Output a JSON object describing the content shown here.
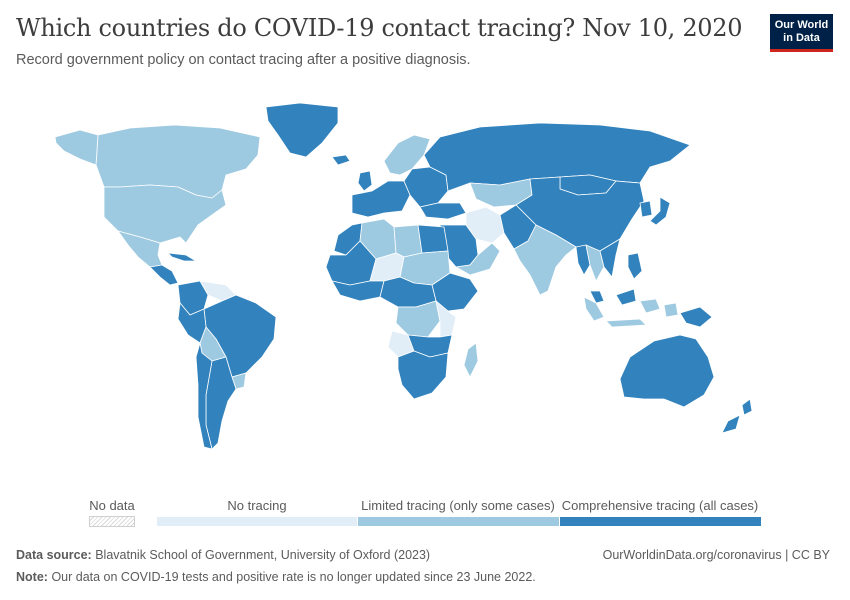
{
  "header": {
    "title": "Which countries do COVID-19 contact tracing? Nov 10, 2020",
    "subtitle": "Record government policy on contact tracing after a positive diagnosis."
  },
  "logo": {
    "line1": "Our World",
    "line2": "in Data"
  },
  "colors": {
    "no_data": "#ffffff",
    "no_tracing": "#e1edf7",
    "limited": "#9ecae1",
    "comprehensive": "#3182bd",
    "background": "#ffffff"
  },
  "legend": {
    "no_data_label": "No data",
    "bins": [
      {
        "label": "No tracing",
        "color": "#e1edf7"
      },
      {
        "label": "Limited tracing (only some cases)",
        "color": "#9ecae1"
      },
      {
        "label": "Comprehensive tracing (all cases)",
        "color": "#3182bd"
      }
    ]
  },
  "map": {
    "projection": "robinson",
    "regions": [
      {
        "name": "Canada",
        "category": "limited"
      },
      {
        "name": "Alaska",
        "category": "limited"
      },
      {
        "name": "United States",
        "category": "limited"
      },
      {
        "name": "Greenland",
        "category": "comprehensive"
      },
      {
        "name": "Mexico",
        "category": "limited"
      },
      {
        "name": "Central America",
        "category": "comprehensive"
      },
      {
        "name": "Cuba",
        "category": "comprehensive"
      },
      {
        "name": "Venezuela",
        "category": "no_tracing"
      },
      {
        "name": "Brazil",
        "category": "comprehensive"
      },
      {
        "name": "Colombia",
        "category": "comprehensive"
      },
      {
        "name": "Bolivia",
        "category": "limited"
      },
      {
        "name": "Peru",
        "category": "comprehensive"
      },
      {
        "name": "Argentina",
        "category": "comprehensive"
      },
      {
        "name": "Chile",
        "category": "comprehensive"
      },
      {
        "name": "Uruguay",
        "category": "limited"
      },
      {
        "name": "Iceland",
        "category": "comprehensive"
      },
      {
        "name": "United Kingdom",
        "category": "comprehensive"
      },
      {
        "name": "Scandinavia",
        "category": "limited"
      },
      {
        "name": "Western Europe",
        "category": "comprehensive"
      },
      {
        "name": "Eastern Europe",
        "category": "comprehensive"
      },
      {
        "name": "Russia",
        "category": "comprehensive"
      },
      {
        "name": "Kazakhstan",
        "category": "limited"
      },
      {
        "name": "Mongolia",
        "category": "comprehensive"
      },
      {
        "name": "China",
        "category": "comprehensive"
      },
      {
        "name": "Japan",
        "category": "comprehensive"
      },
      {
        "name": "Korea",
        "category": "comprehensive"
      },
      {
        "name": "Turkey",
        "category": "comprehensive"
      },
      {
        "name": "Iran",
        "category": "no_tracing"
      },
      {
        "name": "Saudi Arabia",
        "category": "comprehensive"
      },
      {
        "name": "Oman / Yemen",
        "category": "limited"
      },
      {
        "name": "Afghanistan / Pakistan",
        "category": "comprehensive"
      },
      {
        "name": "India",
        "category": "limited"
      },
      {
        "name": "Myanmar",
        "category": "comprehensive"
      },
      {
        "name": "Thailand",
        "category": "limited"
      },
      {
        "name": "Vietnam",
        "category": "comprehensive"
      },
      {
        "name": "Philippines",
        "category": "comprehensive"
      },
      {
        "name": "Malaysia",
        "category": "comprehensive"
      },
      {
        "name": "Indonesia",
        "category": "limited"
      },
      {
        "name": "Papua New Guinea",
        "category": "comprehensive"
      },
      {
        "name": "Australia",
        "category": "comprehensive"
      },
      {
        "name": "New Zealand",
        "category": "comprehensive"
      },
      {
        "name": "North Africa west",
        "category": "comprehensive"
      },
      {
        "name": "Algeria",
        "category": "limited"
      },
      {
        "name": "Libya",
        "category": "limited"
      },
      {
        "name": "Egypt",
        "category": "comprehensive"
      },
      {
        "name": "Sahel",
        "category": "comprehensive"
      },
      {
        "name": "Niger",
        "category": "no_tracing"
      },
      {
        "name": "Sudan",
        "category": "limited"
      },
      {
        "name": "Ethiopia",
        "category": "comprehensive"
      },
      {
        "name": "West Africa",
        "category": "comprehensive"
      },
      {
        "name": "Central Africa",
        "category": "comprehensive"
      },
      {
        "name": "DR Congo",
        "category": "limited"
      },
      {
        "name": "Tanzania",
        "category": "no_tracing"
      },
      {
        "name": "Angola",
        "category": "no_tracing"
      },
      {
        "name": "Zambia",
        "category": "comprehensive"
      },
      {
        "name": "Southern Africa",
        "category": "comprehensive"
      },
      {
        "name": "Madagascar",
        "category": "limited"
      }
    ]
  },
  "footer": {
    "source_label": "Data source:",
    "source_text": "Blavatnik School of Government, University of Oxford (2023)",
    "url": "OurWorldinData.org/coronavirus | CC BY",
    "note_label": "Note:",
    "note_text": "Our data on COVID-19 tests and positive rate is no longer updated since 23 June 2022."
  }
}
